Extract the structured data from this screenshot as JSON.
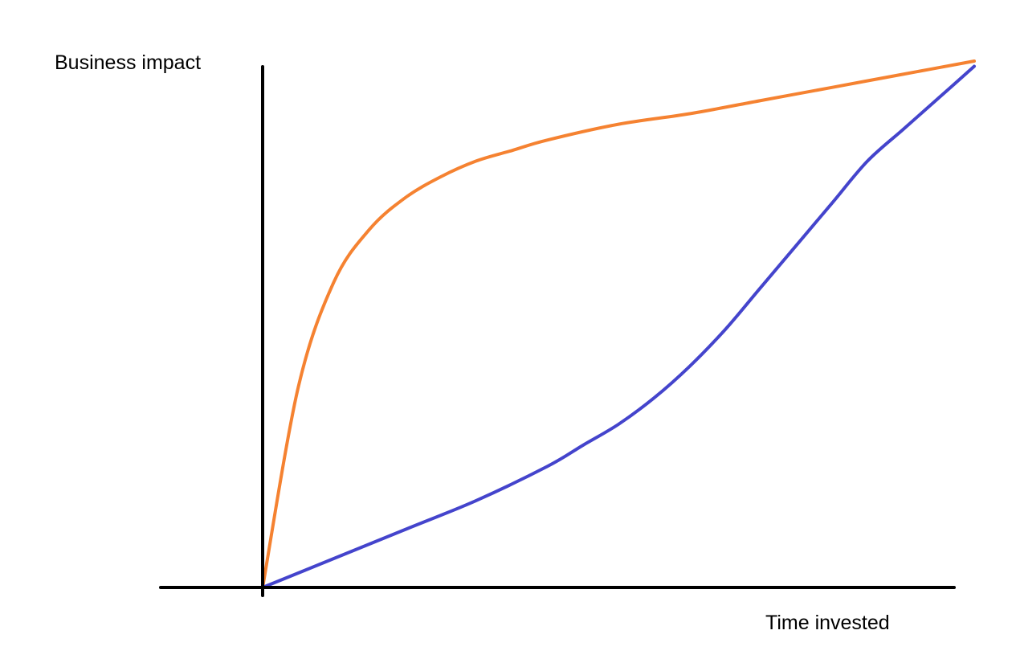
{
  "chart_data": {
    "type": "line",
    "title": "",
    "xlabel": "Time invested",
    "ylabel": "Business impact",
    "xlim": [
      0,
      1
    ],
    "ylim": [
      0,
      1
    ],
    "grid": false,
    "ticks": false,
    "legend": "none",
    "series": [
      {
        "color": "#f58231",
        "x": [
          0,
          0.05,
          0.1,
          0.15,
          0.2,
          0.25,
          0.3,
          0.35,
          0.4,
          0.5,
          0.6,
          0.7,
          0.8,
          0.9,
          1.0
        ],
        "y": [
          0,
          0.38,
          0.58,
          0.68,
          0.74,
          0.78,
          0.81,
          0.83,
          0.85,
          0.88,
          0.9,
          0.925,
          0.95,
          0.975,
          1.0
        ]
      },
      {
        "color": "#4444cc",
        "x": [
          0,
          0.1,
          0.2,
          0.3,
          0.4,
          0.45,
          0.5,
          0.55,
          0.6,
          0.65,
          0.7,
          0.75,
          0.8,
          0.85,
          0.9,
          0.95,
          1.0
        ],
        "y": [
          0,
          0.055,
          0.11,
          0.165,
          0.23,
          0.27,
          0.31,
          0.36,
          0.42,
          0.49,
          0.57,
          0.65,
          0.73,
          0.81,
          0.87,
          0.93,
          0.99
        ]
      }
    ]
  }
}
